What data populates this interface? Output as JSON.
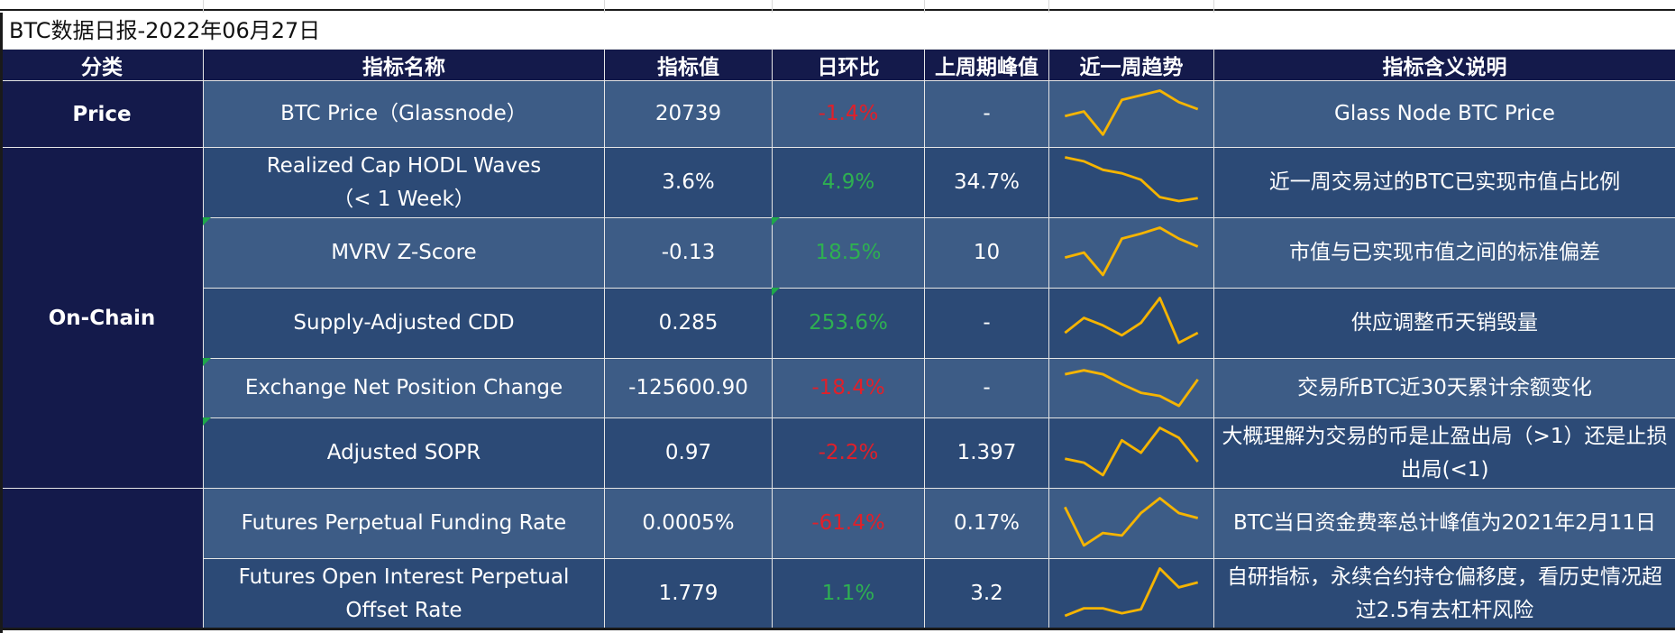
{
  "sheet": {
    "title": "BTC数据日报-2022年06月27日"
  },
  "headers": [
    "分类",
    "指标名称",
    "指标值",
    "日环比",
    "上周期峰值",
    "近一周趋势",
    "指标含义说明"
  ],
  "categories": {
    "price": "Price",
    "onchain": "On-Chain",
    "futures": ""
  },
  "rows": [
    {
      "name": "BTC Price（Glassnode）",
      "value": "20739",
      "dod": "-1.4%",
      "dod_dir": "neg",
      "peak": "-",
      "trend": [
        0.45,
        0.55,
        0.05,
        0.8,
        0.9,
        1.0,
        0.75,
        0.6
      ],
      "desc": "Glass Node BTC Price"
    },
    {
      "name": "Realized Cap HODL Waves\n（< 1 Week）",
      "value": "3.6%",
      "dod": "4.9%",
      "dod_dir": "pos",
      "peak": "34.7%",
      "trend": [
        1.0,
        0.92,
        0.75,
        0.68,
        0.55,
        0.2,
        0.12,
        0.18
      ],
      "desc": "近一周交易过的BTC已实现市值占比例"
    },
    {
      "name": "MVRV Z-Score",
      "value": "-0.13",
      "dod": "18.5%",
      "dod_dir": "pos",
      "peak": "10",
      "trend": [
        0.4,
        0.5,
        0.05,
        0.78,
        0.88,
        1.0,
        0.78,
        0.62
      ],
      "desc": "市值与已实现市值之间的标准偏差"
    },
    {
      "name": "Supply-Adjusted CDD",
      "value": "0.285",
      "dod": "253.6%",
      "dod_dir": "pos",
      "peak": "-",
      "trend": [
        0.3,
        0.6,
        0.45,
        0.25,
        0.5,
        1.0,
        0.1,
        0.3
      ],
      "desc": "供应调整币天销毁量"
    },
    {
      "name": "Exchange Net Position Change",
      "value": "-125600.90",
      "dod": "-18.4%",
      "dod_dir": "neg",
      "peak": "-",
      "trend": [
        0.85,
        0.95,
        0.85,
        0.6,
        0.38,
        0.3,
        0.05,
        0.72
      ],
      "desc": "交易所BTC近30天累计余额变化"
    },
    {
      "name": "Adjusted SOPR",
      "value": "0.97",
      "dod": "-2.2%",
      "dod_dir": "neg",
      "peak": "1.397",
      "trend": [
        0.38,
        0.3,
        0.05,
        0.75,
        0.5,
        1.0,
        0.8,
        0.32
      ],
      "desc": "大概理解为交易的币是止盈出局（>1）还是止损出局(<1)"
    },
    {
      "name": "Futures Perpetual Funding Rate",
      "value": "0.0005%",
      "dod": "-61.4%",
      "dod_dir": "neg",
      "peak": "0.17%",
      "trend": [
        0.82,
        0.05,
        0.3,
        0.25,
        0.7,
        1.0,
        0.7,
        0.6
      ],
      "desc": "BTC当日资金费率总计峰值为2021年2月11日"
    },
    {
      "name": "Futures Open Interest Perpetual\nOffset Rate",
      "value": "1.779",
      "dod": "1.1%",
      "dod_dir": "pos",
      "peak": "3.2",
      "trend": [
        0.05,
        0.2,
        0.2,
        0.1,
        0.18,
        1.0,
        0.62,
        0.72
      ],
      "desc": "自研指标，永续合约持仓偏移度，看历史情况超过2.5有去杠杆风险"
    }
  ],
  "colors": {
    "header_bg": "#141a4b",
    "row_light": "#3d5c86",
    "row_dark": "#2c4a76",
    "negative": "#e0202a",
    "positive": "#2eb051",
    "sparkline": "#f5b400"
  }
}
